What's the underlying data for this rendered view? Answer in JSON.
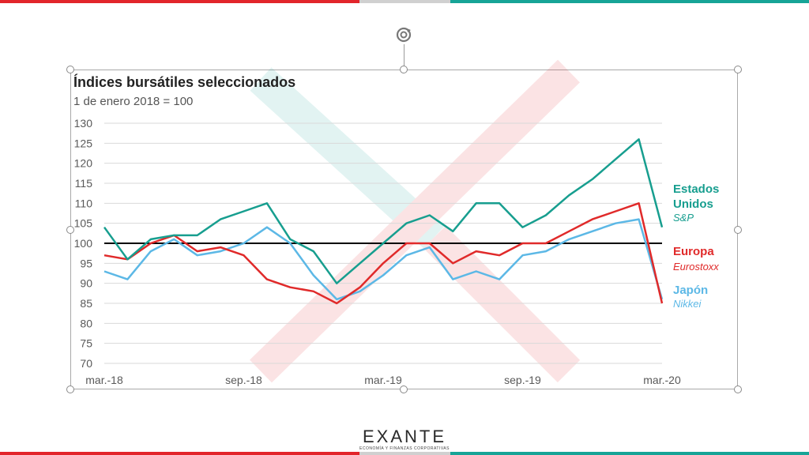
{
  "colors": {
    "us": "#179e8f",
    "europe": "#e02a2a",
    "japan": "#5cb8e6",
    "baseline": "#000000",
    "grid": "#d9d9d9",
    "axis_text": "#595959",
    "stripe_red": "#e2252b",
    "stripe_teal": "#17a497"
  },
  "icons": {
    "rotate": "rotate-handle-icon"
  },
  "legend": {
    "us": {
      "label": "Estados Unidos",
      "line1": "Estados",
      "line2": "Unidos",
      "sub": "S&P"
    },
    "europe": {
      "label": "Europa",
      "sub": "Eurostoxx"
    },
    "japan": {
      "label": "Japón",
      "sub": "Nikkei"
    }
  },
  "logo": {
    "word": "EXANTE",
    "tagline": "ECONOMÍA Y FINANZAS CORPORATIVAS"
  },
  "chart_data": {
    "type": "line",
    "title": "Índices bursátiles seleccionados",
    "subtitle": "1 de enero 2018 = 100",
    "xlabel": "",
    "ylabel": "",
    "ylim": [
      70,
      130
    ],
    "yticks": [
      70,
      75,
      80,
      85,
      90,
      95,
      100,
      105,
      110,
      115,
      120,
      125,
      130
    ],
    "xlim": [
      "2018-03",
      "2020-03"
    ],
    "xtick_labels": [
      "mar.-18",
      "sep.-18",
      "mar.-19",
      "sep.-19",
      "mar.-20"
    ],
    "grid": true,
    "legend_position": "right",
    "reference_line": 100,
    "x": [
      "2018-03",
      "2018-04",
      "2018-05",
      "2018-06",
      "2018-07",
      "2018-08",
      "2018-09",
      "2018-10",
      "2018-11",
      "2018-12",
      "2019-01",
      "2019-02",
      "2019-03",
      "2019-04",
      "2019-05",
      "2019-06",
      "2019-07",
      "2019-08",
      "2019-09",
      "2019-10",
      "2019-11",
      "2019-12",
      "2020-01",
      "2020-02",
      "2020-03"
    ],
    "series": [
      {
        "name": "Estados Unidos",
        "values": [
          104,
          96,
          101,
          102,
          102,
          106,
          108,
          110,
          101,
          98,
          90,
          95,
          100,
          105,
          107,
          103,
          110,
          110,
          104,
          107,
          112,
          116,
          121,
          126,
          104
        ]
      },
      {
        "name": "Europa",
        "values": [
          97,
          96,
          100,
          102,
          98,
          99,
          97,
          91,
          89,
          88,
          85,
          89,
          95,
          100,
          100,
          95,
          98,
          97,
          100,
          100,
          103,
          106,
          108,
          110,
          85
        ]
      },
      {
        "name": "Japón",
        "values": [
          93,
          91,
          98,
          101,
          97,
          98,
          100,
          104,
          100,
          92,
          86,
          88,
          92,
          97,
          99,
          91,
          93,
          91,
          97,
          98,
          101,
          103,
          105,
          106,
          86
        ]
      }
    ]
  }
}
